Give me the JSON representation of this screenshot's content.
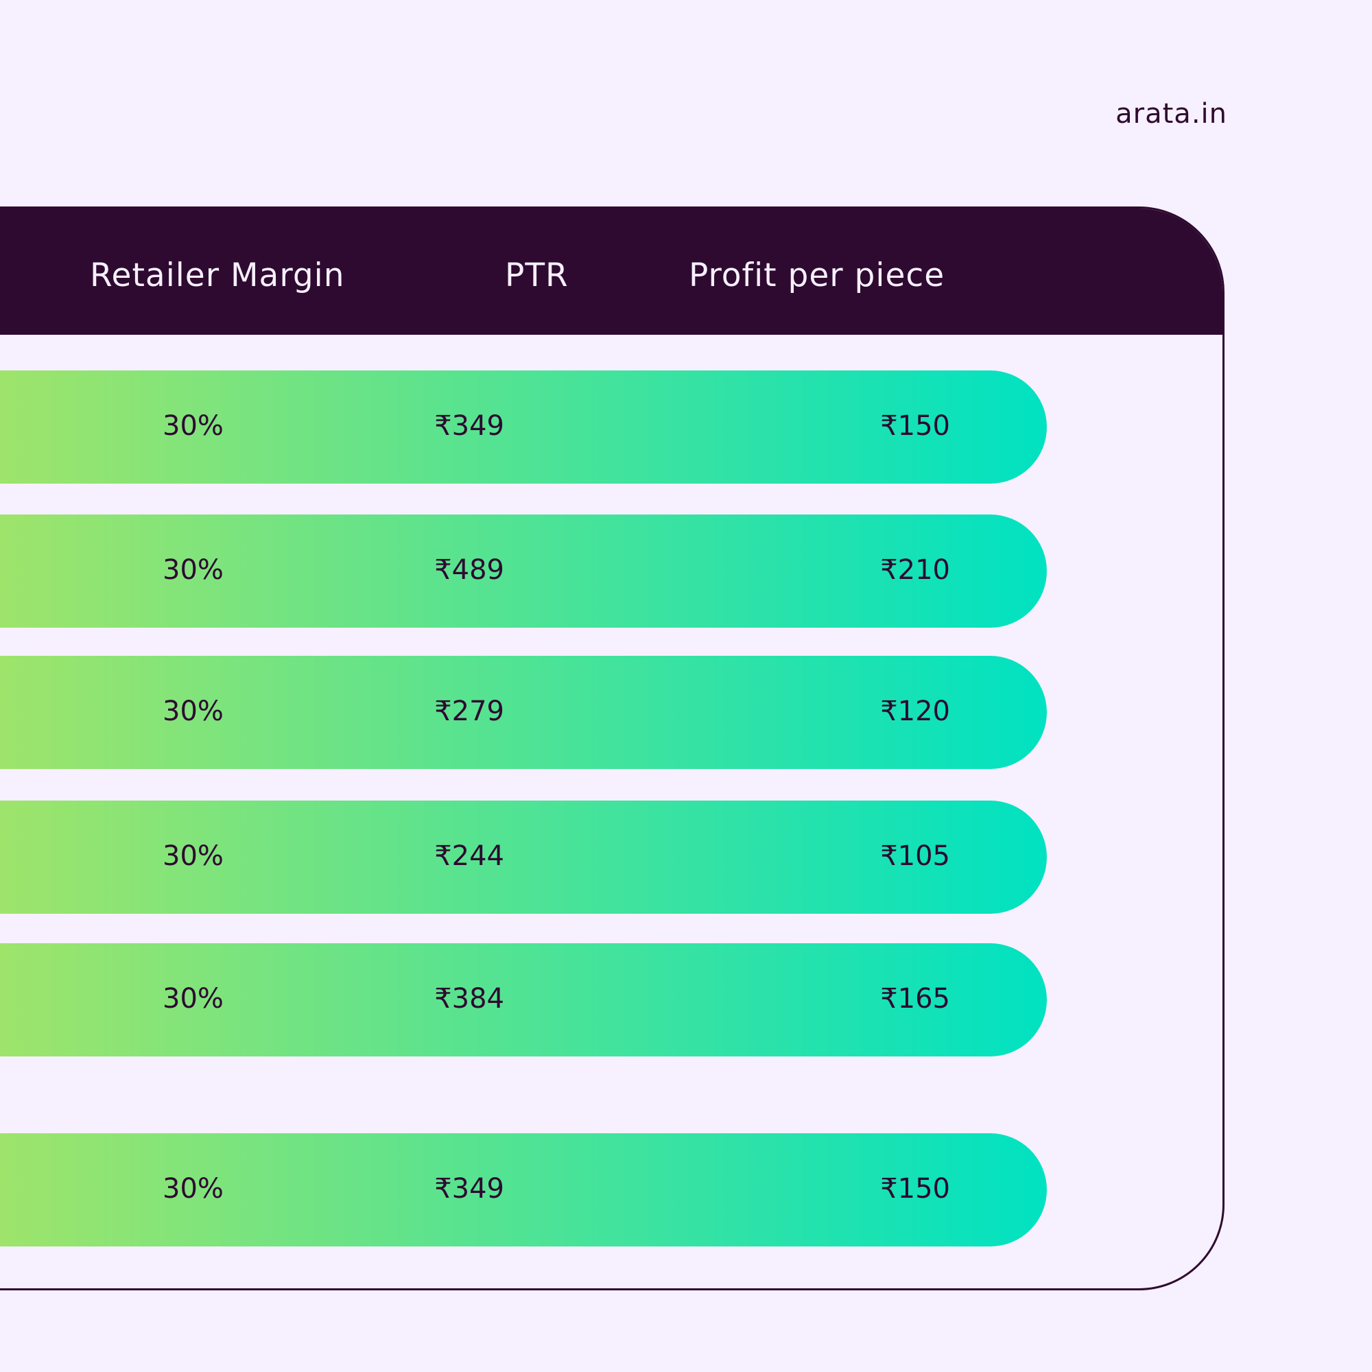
{
  "brand": "arata.in",
  "table": {
    "headers": {
      "retailer_margin": "Retailer Margin",
      "ptr": "PTR",
      "profit": "Profit per piece"
    },
    "rows": [
      {
        "margin": "30%",
        "ptr": "₹349",
        "profit": "₹150"
      },
      {
        "margin": "30%",
        "ptr": "₹489",
        "profit": "₹210"
      },
      {
        "margin": "30%",
        "ptr": "₹279",
        "profit": "₹120"
      },
      {
        "margin": "30%",
        "ptr": "₹244",
        "profit": "₹105"
      },
      {
        "margin": "30%",
        "ptr": "₹384",
        "profit": "₹165"
      },
      {
        "margin": "30%",
        "ptr": "₹349",
        "profit": "₹150"
      }
    ]
  },
  "colors": {
    "background": "#f7f0fe",
    "header": "#2e0a30",
    "gradient_start": "#a4e468",
    "gradient_end": "#00e2c2"
  }
}
